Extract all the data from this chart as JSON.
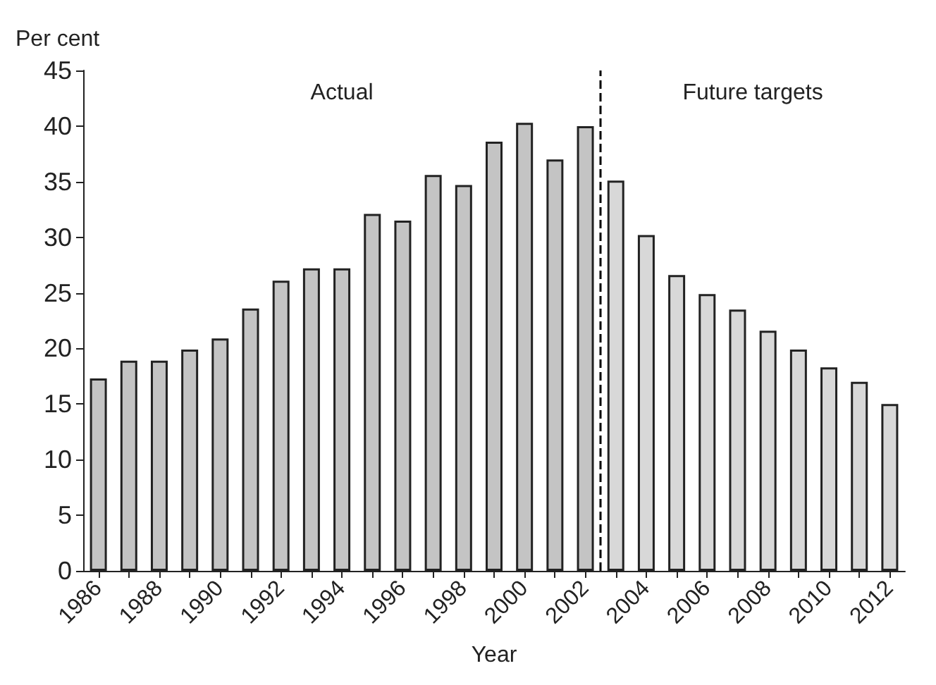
{
  "chart_data": {
    "type": "bar",
    "xlabel": "Year",
    "ylabel": "Per cent",
    "x": [
      1986,
      1987,
      1988,
      1989,
      1990,
      1991,
      1992,
      1993,
      1994,
      1995,
      1996,
      1997,
      1998,
      1999,
      2000,
      2001,
      2002,
      2003,
      2004,
      2005,
      2006,
      2007,
      2008,
      2009,
      2010,
      2011,
      2012
    ],
    "values": [
      17.3,
      18.9,
      18.9,
      19.9,
      20.9,
      23.6,
      26.1,
      27.2,
      27.2,
      32.1,
      31.5,
      35.6,
      34.7,
      38.6,
      40.3,
      37.0,
      40.0,
      35.1,
      30.2,
      26.6,
      24.9,
      23.5,
      21.6,
      19.9,
      18.3,
      17.0,
      15.0
    ],
    "colors": [
      "#c4c4c4",
      "#c4c4c4",
      "#c4c4c4",
      "#c4c4c4",
      "#c4c4c4",
      "#c4c4c4",
      "#c4c4c4",
      "#c4c4c4",
      "#c4c4c4",
      "#c4c4c4",
      "#c4c4c4",
      "#c4c4c4",
      "#c4c4c4",
      "#c4c4c4",
      "#c4c4c4",
      "#c4c4c4",
      "#c4c4c4",
      "#d8d8d8",
      "#d8d8d8",
      "#d8d8d8",
      "#d8d8d8",
      "#d8d8d8",
      "#d8d8d8",
      "#d8d8d8",
      "#d8d8d8",
      "#d8d8d8",
      "#d8d8d8"
    ],
    "xlim": [
      1985.5,
      2012.5
    ],
    "xticks": [
      1986,
      {
        "value": 1987,
        "label": null
      },
      1988,
      {
        "value": 1989,
        "label": null
      },
      1990,
      {
        "value": 1991,
        "label": null
      },
      1992,
      {
        "value": 1993,
        "label": null
      },
      1994,
      {
        "value": 1995,
        "label": null
      },
      1996,
      {
        "value": 1997,
        "label": null
      },
      1998,
      {
        "value": 1999,
        "label": null
      },
      2000,
      {
        "value": 2001,
        "label": null
      },
      2002,
      {
        "value": 2003,
        "label": null
      },
      2004,
      {
        "value": 2005,
        "label": null
      },
      2006,
      {
        "value": 2007,
        "label": null
      },
      2008,
      {
        "value": 2009,
        "label": null
      },
      2010,
      {
        "value": 2011,
        "label": null
      },
      2012
    ],
    "ylim": [
      0,
      45
    ],
    "yticks": [
      0,
      5,
      10,
      15,
      20,
      25,
      30,
      35,
      40,
      45
    ],
    "ref_lines": [
      {
        "axis": "x",
        "value": 2002.5,
        "line_style": "dashed",
        "color": "#000000"
      }
    ],
    "annotations": [
      "Actual",
      "Future targets"
    ]
  }
}
